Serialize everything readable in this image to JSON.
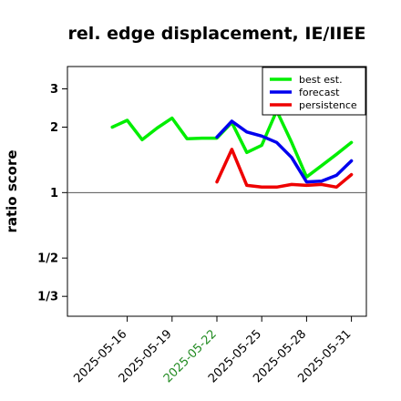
{
  "chart_data": {
    "type": "line",
    "title": "rel. edge displacement, IE/IIEE",
    "xlabel": "",
    "ylabel": "ratio score",
    "y_scale": "log",
    "ylim": [
      0.27,
      3.8
    ],
    "xlim": [
      "2025-05-12",
      "2025-06-01"
    ],
    "y_ticks": [
      {
        "value": 0.3333,
        "label": "1/3"
      },
      {
        "value": 0.5,
        "label": "1/2"
      },
      {
        "value": 1,
        "label": "1"
      },
      {
        "value": 2,
        "label": "2"
      },
      {
        "value": 3,
        "label": "3"
      }
    ],
    "x_ticks": [
      {
        "date": "2025-05-16",
        "label": "2025-05-16",
        "color": "#000000"
      },
      {
        "date": "2025-05-19",
        "label": "2025-05-19",
        "color": "#000000"
      },
      {
        "date": "2025-05-22",
        "label": "2025-05-22",
        "color": "#228B22"
      },
      {
        "date": "2025-05-25",
        "label": "2025-05-25",
        "color": "#000000"
      },
      {
        "date": "2025-05-28",
        "label": "2025-05-28",
        "color": "#000000"
      },
      {
        "date": "2025-05-31",
        "label": "2025-05-31",
        "color": "#000000"
      }
    ],
    "reference_line": 1,
    "grid": false,
    "legend_position": "top-right",
    "series": [
      {
        "name": "best est.",
        "color": "#00ee00",
        "x": [
          "2025-05-15",
          "2025-05-16",
          "2025-05-17",
          "2025-05-18",
          "2025-05-19",
          "2025-05-20",
          "2025-05-21",
          "2025-05-22",
          "2025-05-23",
          "2025-05-24",
          "2025-05-25",
          "2025-05-26",
          "2025-05-27",
          "2025-05-28",
          "2025-05-29",
          "2025-05-30",
          "2025-05-31"
        ],
        "values": [
          2.0,
          2.15,
          1.75,
          1.98,
          2.2,
          1.77,
          1.78,
          1.78,
          2.1,
          1.53,
          1.65,
          2.38,
          1.7,
          1.18,
          1.33,
          1.5,
          1.7
        ]
      },
      {
        "name": "forecast",
        "color": "#0000ee",
        "x": [
          "2025-05-22",
          "2025-05-23",
          "2025-05-24",
          "2025-05-25",
          "2025-05-26",
          "2025-05-27",
          "2025-05-28",
          "2025-05-29",
          "2025-05-30",
          "2025-05-31"
        ],
        "values": [
          1.8,
          2.13,
          1.9,
          1.82,
          1.7,
          1.45,
          1.12,
          1.13,
          1.2,
          1.4
        ]
      },
      {
        "name": "persistence",
        "color": "#ee0000",
        "x": [
          "2025-05-22",
          "2025-05-23",
          "2025-05-24",
          "2025-05-25",
          "2025-05-26",
          "2025-05-27",
          "2025-05-28",
          "2025-05-29",
          "2025-05-30",
          "2025-05-31"
        ],
        "values": [
          1.12,
          1.58,
          1.08,
          1.06,
          1.06,
          1.09,
          1.08,
          1.09,
          1.06,
          1.21
        ]
      }
    ]
  }
}
